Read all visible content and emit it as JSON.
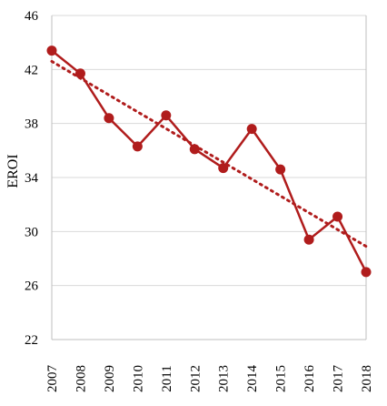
{
  "chart_data": {
    "type": "line",
    "title": "",
    "xlabel": "",
    "ylabel": "EROI",
    "x": [
      2007,
      2008,
      2009,
      2010,
      2011,
      2012,
      2013,
      2014,
      2015,
      2016,
      2017,
      2018
    ],
    "x_tick_labels": [
      "2007",
      "2008",
      "2009",
      "2010",
      "2011",
      "2012",
      "2013",
      "2014",
      "2015",
      "2016",
      "2017",
      "2018"
    ],
    "y_tick_labels": [
      "22",
      "26",
      "30",
      "34",
      "38",
      "42",
      "46"
    ],
    "y_ticks": [
      22,
      26,
      30,
      34,
      38,
      42,
      46
    ],
    "ylim": [
      22,
      46
    ],
    "grid": "horizontal",
    "series": [
      {
        "values": [
          43.4,
          41.7,
          38.4,
          36.3,
          38.6,
          36.1,
          34.7,
          37.6,
          34.6,
          29.4,
          31.1,
          27.0
        ]
      }
    ],
    "trendline": {
      "style": "dotted",
      "start": 42.6,
      "end": 28.9
    },
    "colors": {
      "series": "#B01C1C",
      "grid": "#D9D9D9",
      "axis": "#BFBFBF"
    }
  }
}
